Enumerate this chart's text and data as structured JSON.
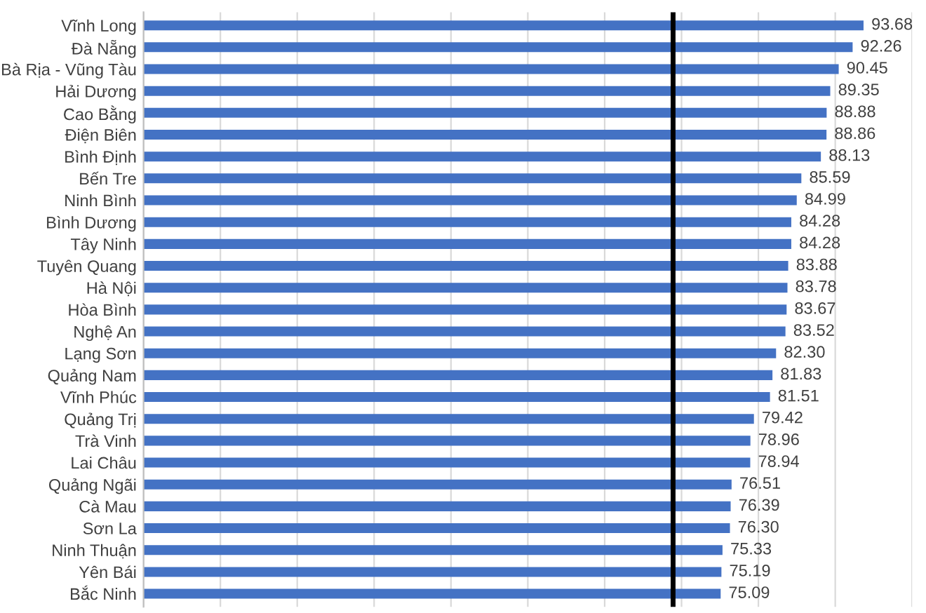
{
  "chart_data": {
    "type": "bar",
    "orientation": "horizontal",
    "categories": [
      "Vĩnh Long",
      "Đà Nẵng",
      "Bà Rịa - Vũng Tàu",
      "Hải Dương",
      "Cao Bằng",
      "Điện Biên",
      "Bình Định",
      "Bến Tre",
      "Ninh Bình",
      "Bình Dương",
      "Tây Ninh",
      "Tuyên Quang",
      "Hà Nội",
      "Hòa Bình",
      "Nghệ An",
      "Lạng Sơn",
      "Quảng Nam",
      "Vĩnh Phúc",
      "Quảng Trị",
      "Trà Vinh",
      "Lai Châu",
      "Quảng Ngãi",
      "Cà Mau",
      "Sơn La",
      "Ninh Thuận",
      "Yên Bái",
      "Bắc Ninh"
    ],
    "values": [
      93.68,
      92.26,
      90.45,
      89.35,
      88.88,
      88.86,
      88.13,
      85.59,
      84.99,
      84.28,
      84.28,
      83.88,
      83.78,
      83.67,
      83.52,
      82.3,
      81.83,
      81.51,
      79.42,
      78.96,
      78.94,
      76.51,
      76.39,
      76.3,
      75.33,
      75.19,
      75.09
    ],
    "value_labels": [
      "93.68",
      "92.26",
      "90.45",
      "89.35",
      "88.88",
      "88.86",
      "88.13",
      "85.59",
      "84.99",
      "84.28",
      "84.28",
      "83.88",
      "83.78",
      "83.67",
      "83.52",
      "82.30",
      "81.83",
      "81.51",
      "79.42",
      "78.96",
      "78.94",
      "76.51",
      "76.39",
      "76.30",
      "75.33",
      "75.19",
      "75.09"
    ],
    "color": "#4472c4",
    "xlim": [
      0,
      100
    ],
    "xticks": [
      {
        "value": 0,
        "label": null
      },
      {
        "value": 10,
        "label": null
      },
      {
        "value": 20,
        "label": null
      },
      {
        "value": 30,
        "label": null
      },
      {
        "value": 40,
        "label": null
      },
      {
        "value": 50,
        "label": null
      },
      {
        "value": 60,
        "label": null
      },
      {
        "value": 70,
        "label": null
      },
      {
        "value": 80,
        "label": null
      },
      {
        "value": 90,
        "label": null
      },
      {
        "value": 100,
        "label": null
      }
    ],
    "grid": "x",
    "tick_labels": "y",
    "ref_lines": [
      {
        "axis": "x",
        "value": 68.9,
        "color": "#000000"
      }
    ]
  }
}
